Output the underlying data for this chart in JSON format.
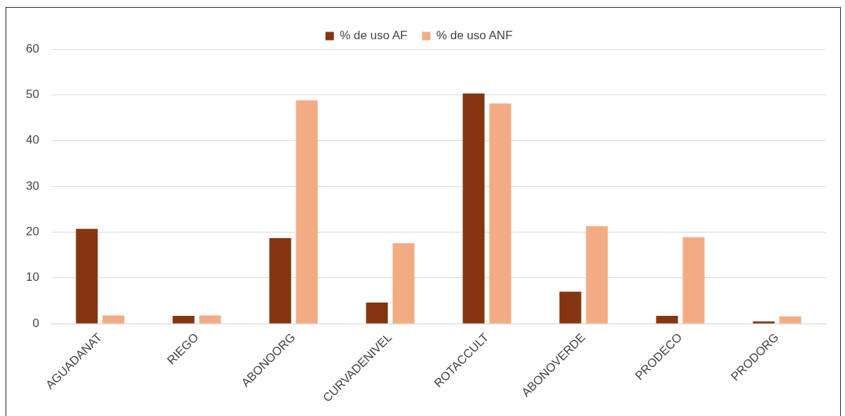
{
  "chart_data": {
    "type": "bar",
    "categories": [
      "AGUADANAT",
      "RIEGO",
      "ABONOORG",
      "CURVADENIVEL",
      "ROTACCULT",
      "ABONOVERDE",
      "PRODECO",
      "PRODORG"
    ],
    "series": [
      {
        "name": "% de uso AF",
        "color": "#843511",
        "values": [
          20.7,
          1.7,
          18.7,
          4.6,
          50.3,
          7.0,
          1.7,
          0.5
        ]
      },
      {
        "name": "% de uso ANF",
        "color": "#f3ab84",
        "values": [
          1.8,
          1.8,
          48.8,
          17.6,
          48.1,
          21.3,
          18.9,
          1.6
        ]
      }
    ],
    "ylim": [
      0,
      60
    ],
    "yticks": [
      0,
      10,
      20,
      30,
      40,
      50,
      60
    ],
    "grid": "y",
    "legend": "top"
  }
}
